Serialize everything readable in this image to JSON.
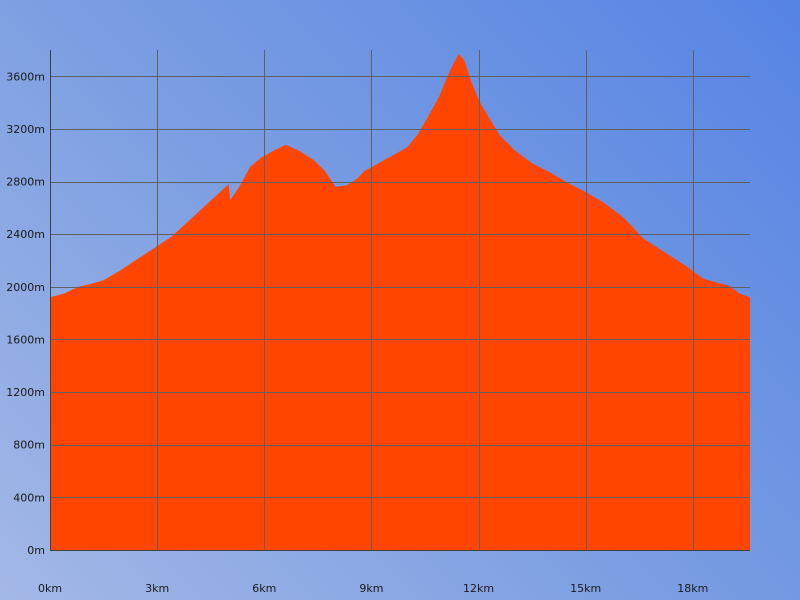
{
  "chart_data": {
    "type": "area",
    "title": "",
    "xlabel": "",
    "ylabel": "",
    "x_unit": "km",
    "y_unit": "m",
    "xlim": [
      0,
      19.6
    ],
    "ylim": [
      0,
      3800
    ],
    "x_ticks": [
      {
        "value": 0,
        "label": "0km"
      },
      {
        "value": 3,
        "label": "3km"
      },
      {
        "value": 6,
        "label": "6km"
      },
      {
        "value": 9,
        "label": "9km"
      },
      {
        "value": 12,
        "label": "12km"
      },
      {
        "value": 15,
        "label": "15km"
      },
      {
        "value": 18,
        "label": "18km"
      }
    ],
    "y_ticks": [
      {
        "value": 0,
        "label": "0m"
      },
      {
        "value": 400,
        "label": "400m"
      },
      {
        "value": 800,
        "label": "800m"
      },
      {
        "value": 1200,
        "label": "1200m"
      },
      {
        "value": 1600,
        "label": "1600m"
      },
      {
        "value": 2000,
        "label": "2000m"
      },
      {
        "value": 2400,
        "label": "2400m"
      },
      {
        "value": 2800,
        "label": "2800m"
      },
      {
        "value": 3200,
        "label": "3200m"
      },
      {
        "value": 3600,
        "label": "3600m"
      }
    ],
    "grid": true,
    "colors": {
      "fill": "#ff4500",
      "grid": "#606060",
      "axis": "#404040",
      "text": "#1a1a1a"
    },
    "series": [
      {
        "x": [
          0,
          0.4,
          0.8,
          1.1,
          1.5,
          2.0,
          2.5,
          3.0,
          3.4,
          3.8,
          4.2,
          4.6,
          5.0,
          5.05,
          5.3,
          5.6,
          5.9,
          6.3,
          6.6,
          7.0,
          7.4,
          7.7,
          7.9,
          8.0,
          8.3,
          8.6,
          8.8,
          9.2,
          9.6,
          10.0,
          10.3,
          10.6,
          10.9,
          11.1,
          11.3,
          11.45,
          11.6,
          11.8,
          12.0,
          12.3,
          12.6,
          13.0,
          13.5,
          14.0,
          14.5,
          15.0,
          15.5,
          16.0,
          16.3,
          16.6,
          17.0,
          17.4,
          17.8,
          18.0,
          18.3,
          18.7,
          19.0,
          19.3,
          19.6
        ],
        "y": [
          1920,
          1950,
          2000,
          2020,
          2050,
          2130,
          2220,
          2310,
          2380,
          2480,
          2580,
          2680,
          2780,
          2660,
          2760,
          2910,
          2980,
          3040,
          3080,
          3030,
          2960,
          2880,
          2800,
          2760,
          2770,
          2820,
          2880,
          2940,
          3000,
          3060,
          3160,
          3300,
          3450,
          3580,
          3700,
          3770,
          3720,
          3560,
          3420,
          3280,
          3150,
          3040,
          2940,
          2870,
          2790,
          2720,
          2640,
          2540,
          2460,
          2370,
          2300,
          2230,
          2160,
          2120,
          2060,
          2030,
          2010,
          1950,
          1920
        ]
      }
    ]
  }
}
